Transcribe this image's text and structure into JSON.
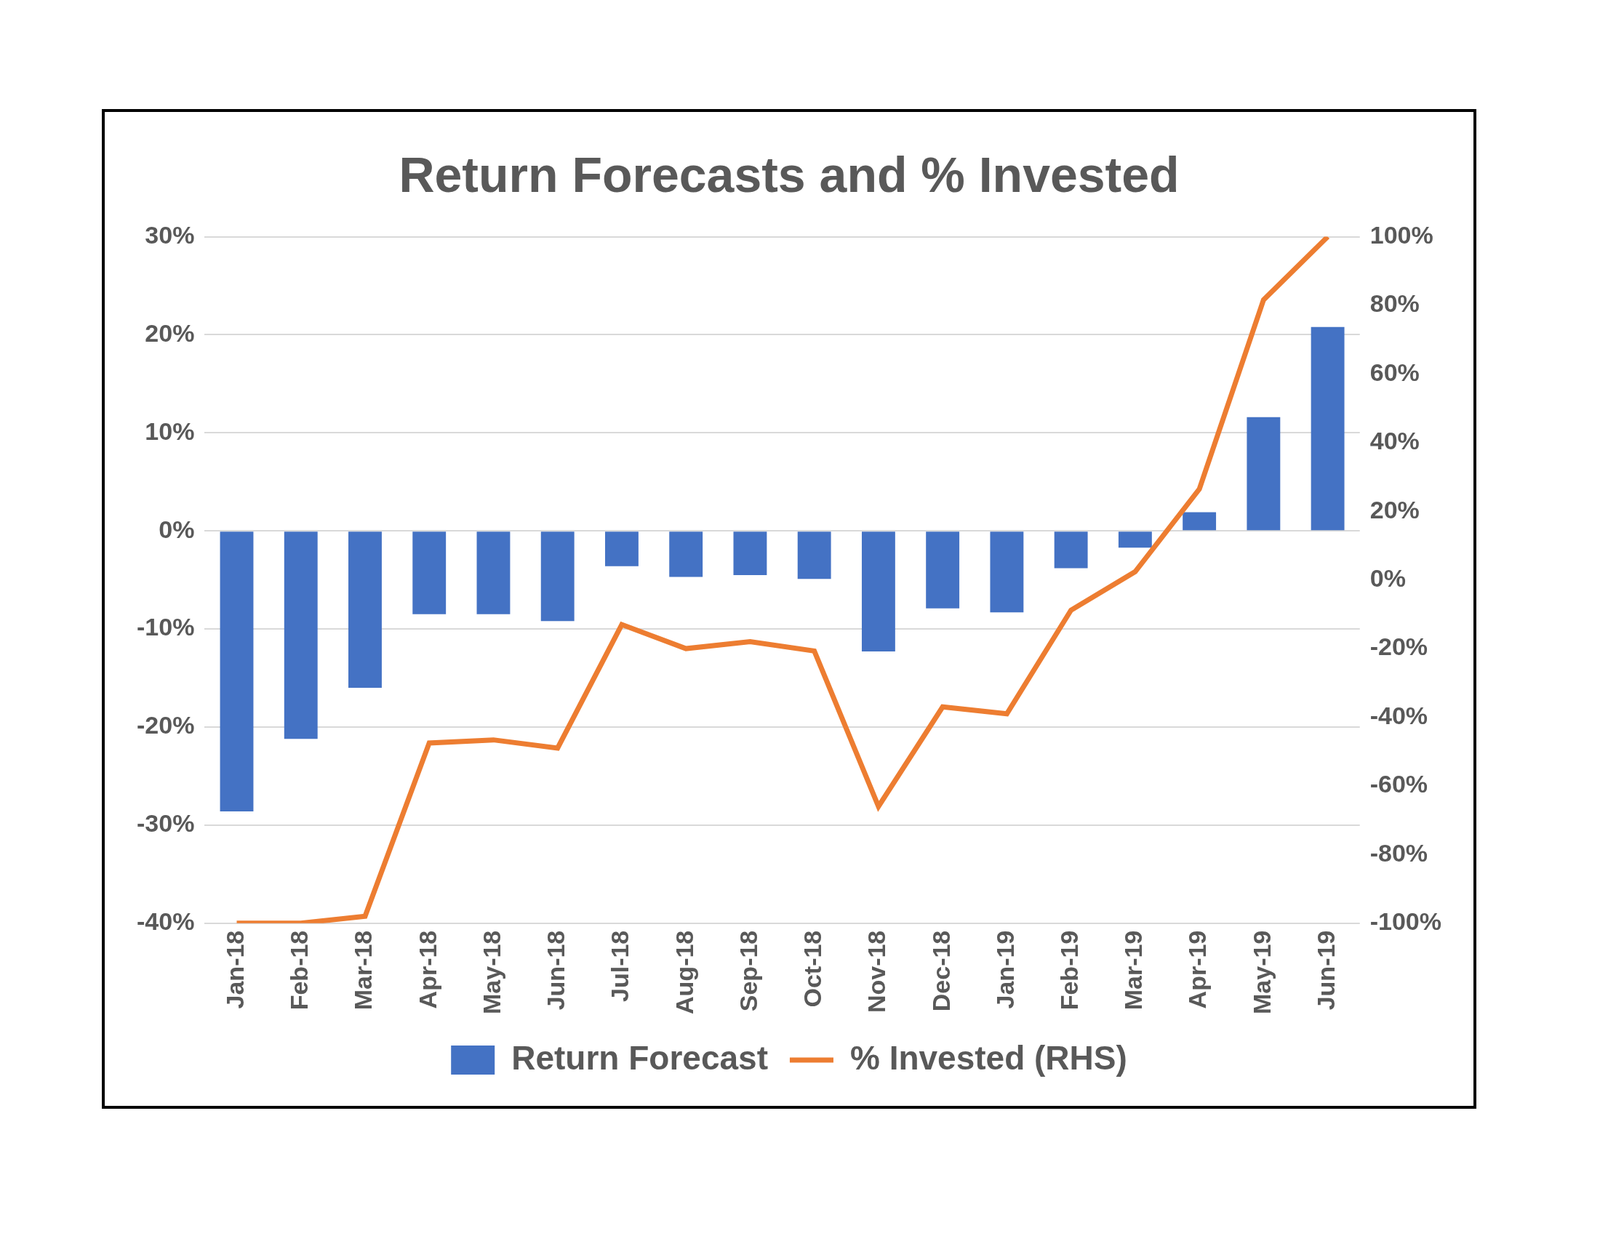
{
  "chart_data": {
    "type": "bar",
    "title": "Return Forecasts and % Invested",
    "categories": [
      "Jan-18",
      "Feb-18",
      "Mar-18",
      "Apr-18",
      "May-18",
      "Jun-18",
      "Jul-18",
      "Aug-18",
      "Sep-18",
      "Oct-18",
      "Nov-18",
      "Dec-18",
      "Jan-19",
      "Feb-19",
      "Mar-19",
      "Apr-19",
      "May-19",
      "Jun-19"
    ],
    "series": [
      {
        "name": "Return Forecast",
        "type": "bar",
        "color": "#4472c4",
        "values": [
          -28.6,
          -21.2,
          -16.0,
          -8.5,
          -8.5,
          -9.2,
          -3.6,
          -4.7,
          -4.5,
          -4.9,
          -12.3,
          -7.9,
          -8.3,
          -3.8,
          -1.7,
          1.9,
          11.6,
          20.8
        ]
      },
      {
        "name": "% Invested (RHS)",
        "type": "line",
        "axis": "y2",
        "color": "#ed7d31",
        "values": [
          -100,
          -100,
          -98,
          -47.5,
          -46.6,
          -49,
          -13,
          -20,
          -18,
          -20.7,
          -66,
          -37,
          -39,
          -8.8,
          2.4,
          26.5,
          81.6,
          100
        ]
      }
    ],
    "ylim": [
      -40,
      30
    ],
    "yticks": [
      {
        "value": -40,
        "label": "-40%"
      },
      {
        "value": -30,
        "label": "-30%"
      },
      {
        "value": -20,
        "label": "-20%"
      },
      {
        "value": -10,
        "label": "-10%"
      },
      {
        "value": 0,
        "label": "0%"
      },
      {
        "value": 10,
        "label": "10%"
      },
      {
        "value": 20,
        "label": "20%"
      },
      {
        "value": 30,
        "label": "30%"
      }
    ],
    "y2lim": [
      -100,
      100
    ],
    "y2ticks": [
      {
        "value": -100,
        "label": "-100%"
      },
      {
        "value": -80,
        "label": "-80%"
      },
      {
        "value": -60,
        "label": "-60%"
      },
      {
        "value": -40,
        "label": "-40%"
      },
      {
        "value": -20,
        "label": "-20%"
      },
      {
        "value": 0,
        "label": "0%"
      },
      {
        "value": 20,
        "label": "20%"
      },
      {
        "value": 40,
        "label": "40%"
      },
      {
        "value": 60,
        "label": "60%"
      },
      {
        "value": 80,
        "label": "80%"
      },
      {
        "value": 100,
        "label": "100%"
      }
    ],
    "grid": true,
    "legend": "bottom"
  }
}
